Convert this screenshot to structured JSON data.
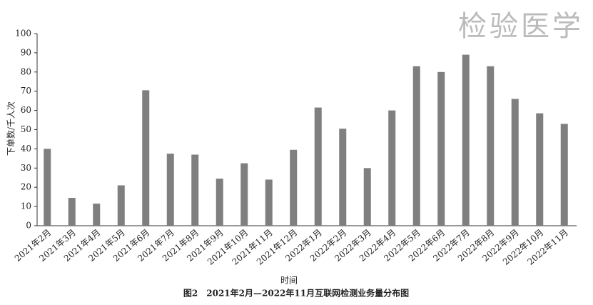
{
  "chart_data": {
    "type": "bar",
    "watermark": "检验医学",
    "caption": "图2　2021年2月—2022年11月互联网检测业务量分布图",
    "x_label": "时间",
    "y_label": "下单数/千人次",
    "categories": [
      "2021年2月",
      "2021年3月",
      "2021年4月",
      "2021年5月",
      "2021年6月",
      "2021年7月",
      "2021年8月",
      "2021年9月",
      "2021年10月",
      "2021年11月",
      "2021年12月",
      "2022年1月",
      "2022年2月",
      "2022年3月",
      "2022年4月",
      "2022年5月",
      "2022年6月",
      "2022年7月",
      "2022年8月",
      "2022年9月",
      "2022年10月",
      "2022年11月"
    ],
    "values": [
      40,
      14.5,
      11.5,
      21,
      70.5,
      37.5,
      37,
      24.5,
      32.5,
      24,
      39.5,
      61.5,
      50.5,
      30,
      60,
      83,
      80,
      89,
      83,
      66,
      58.5,
      53
    ],
    "color": "#7f7f7f",
    "ylim": [
      0,
      100
    ],
    "yticks": [
      0,
      10,
      20,
      30,
      40,
      50,
      60,
      70,
      80,
      90,
      100
    ],
    "grid": false
  }
}
